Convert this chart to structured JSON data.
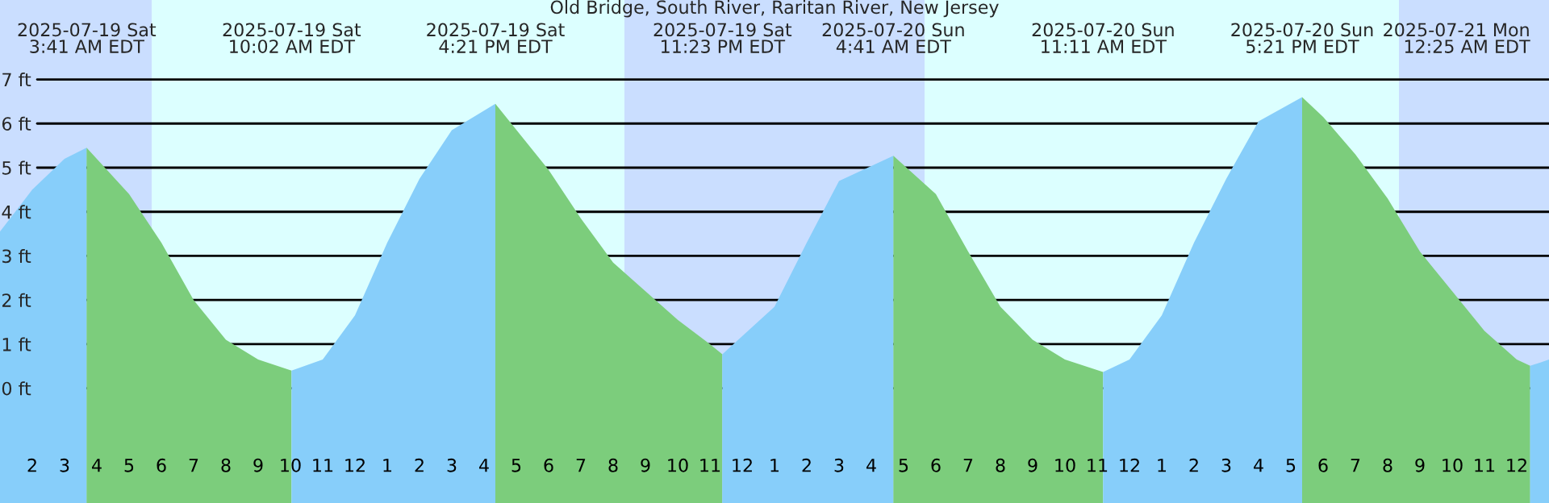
{
  "chart_data": {
    "type": "area",
    "title": "Old Bridge, South River, Raritan River, New Jersey",
    "series": [
      {
        "color": "#87cefa",
        "x": [
          "2025-07-19T01:00",
          "2025-07-19T02:00",
          "2025-07-19T03:00",
          "2025-07-19T03:41"
        ],
        "values": [
          3.55,
          4.5,
          5.2,
          5.45
        ]
      },
      {
        "color": "#7ccd7c",
        "x": [
          "2025-07-19T03:41",
          "2025-07-19T05:00",
          "2025-07-19T06:00",
          "2025-07-19T07:00",
          "2025-07-19T08:00",
          "2025-07-19T09:00",
          "2025-07-19T10:02"
        ],
        "values": [
          5.45,
          4.4,
          3.3,
          2.0,
          1.1,
          0.65,
          0.4
        ]
      },
      {
        "color": "#87cefa",
        "x": [
          "2025-07-19T10:02",
          "2025-07-19T11:00",
          "2025-07-19T12:00",
          "2025-07-19T13:00",
          "2025-07-19T14:00",
          "2025-07-19T15:00",
          "2025-07-19T16:21"
        ],
        "values": [
          0.4,
          0.65,
          1.65,
          3.3,
          4.75,
          5.85,
          6.45
        ]
      },
      {
        "color": "#7ccd7c",
        "x": [
          "2025-07-19T16:21",
          "2025-07-19T18:00",
          "2025-07-19T19:00",
          "2025-07-19T20:00",
          "2025-07-19T21:00",
          "2025-07-19T22:00",
          "2025-07-19T23:00",
          "2025-07-19T23:23"
        ],
        "values": [
          6.45,
          4.95,
          3.85,
          2.85,
          2.2,
          1.55,
          1.0,
          0.77
        ]
      },
      {
        "color": "#87cefa",
        "x": [
          "2025-07-19T23:23",
          "2025-07-20T01:00",
          "2025-07-20T02:00",
          "2025-07-20T03:00",
          "2025-07-20T04:41"
        ],
        "values": [
          0.77,
          1.85,
          3.3,
          4.7,
          5.27
        ]
      },
      {
        "color": "#7ccd7c",
        "x": [
          "2025-07-20T04:41",
          "2025-07-20T06:00",
          "2025-07-20T07:00",
          "2025-07-20T08:00",
          "2025-07-20T09:00",
          "2025-07-20T10:00",
          "2025-07-20T11:11"
        ],
        "values": [
          5.27,
          4.4,
          3.1,
          1.85,
          1.1,
          0.65,
          0.37
        ]
      },
      {
        "color": "#87cefa",
        "x": [
          "2025-07-20T11:11",
          "2025-07-20T12:00",
          "2025-07-20T13:00",
          "2025-07-20T14:00",
          "2025-07-20T15:00",
          "2025-07-20T16:00",
          "2025-07-20T17:21"
        ],
        "values": [
          0.37,
          0.65,
          1.65,
          3.3,
          4.75,
          6.05,
          6.6
        ]
      },
      {
        "color": "#7ccd7c",
        "x": [
          "2025-07-20T17:21",
          "2025-07-20T18:00",
          "2025-07-20T19:00",
          "2025-07-20T20:00",
          "2025-07-20T21:00",
          "2025-07-20T22:00",
          "2025-07-20T23:00",
          "2025-07-21T00:00",
          "2025-07-21T00:25"
        ],
        "values": [
          6.6,
          6.15,
          5.3,
          4.3,
          3.1,
          2.2,
          1.3,
          0.65,
          0.51
        ]
      },
      {
        "color": "#87cefa",
        "x": [
          "2025-07-21T00:25",
          "2025-07-21T00:45",
          "2025-07-21T01:00"
        ],
        "values": [
          0.51,
          0.59,
          0.65
        ]
      }
    ],
    "xlim": [
      "2025-07-19T01:00",
      "2025-07-21T01:00"
    ],
    "xticks": [
      {
        "value": "2025-07-19T02:00",
        "label": "2"
      },
      {
        "value": "2025-07-19T03:00",
        "label": "3"
      },
      {
        "value": "2025-07-19T04:00",
        "label": "4"
      },
      {
        "value": "2025-07-19T05:00",
        "label": "5"
      },
      {
        "value": "2025-07-19T06:00",
        "label": "6"
      },
      {
        "value": "2025-07-19T07:00",
        "label": "7"
      },
      {
        "value": "2025-07-19T08:00",
        "label": "8"
      },
      {
        "value": "2025-07-19T09:00",
        "label": "9"
      },
      {
        "value": "2025-07-19T10:00",
        "label": "10"
      },
      {
        "value": "2025-07-19T11:00",
        "label": "11"
      },
      {
        "value": "2025-07-19T12:00",
        "label": "12"
      },
      {
        "value": "2025-07-19T13:00",
        "label": "1"
      },
      {
        "value": "2025-07-19T14:00",
        "label": "2"
      },
      {
        "value": "2025-07-19T15:00",
        "label": "3"
      },
      {
        "value": "2025-07-19T16:00",
        "label": "4"
      },
      {
        "value": "2025-07-19T17:00",
        "label": "5"
      },
      {
        "value": "2025-07-19T18:00",
        "label": "6"
      },
      {
        "value": "2025-07-19T19:00",
        "label": "7"
      },
      {
        "value": "2025-07-19T20:00",
        "label": "8"
      },
      {
        "value": "2025-07-19T21:00",
        "label": "9"
      },
      {
        "value": "2025-07-19T22:00",
        "label": "10"
      },
      {
        "value": "2025-07-19T23:00",
        "label": "11"
      },
      {
        "value": "2025-07-20T00:00",
        "label": "12"
      },
      {
        "value": "2025-07-20T01:00",
        "label": "1"
      },
      {
        "value": "2025-07-20T02:00",
        "label": "2"
      },
      {
        "value": "2025-07-20T03:00",
        "label": "3"
      },
      {
        "value": "2025-07-20T04:00",
        "label": "4"
      },
      {
        "value": "2025-07-20T05:00",
        "label": "5"
      },
      {
        "value": "2025-07-20T06:00",
        "label": "6"
      },
      {
        "value": "2025-07-20T07:00",
        "label": "7"
      },
      {
        "value": "2025-07-20T08:00",
        "label": "8"
      },
      {
        "value": "2025-07-20T09:00",
        "label": "9"
      },
      {
        "value": "2025-07-20T10:00",
        "label": "10"
      },
      {
        "value": "2025-07-20T11:00",
        "label": "11"
      },
      {
        "value": "2025-07-20T12:00",
        "label": "12"
      },
      {
        "value": "2025-07-20T13:00",
        "label": "1"
      },
      {
        "value": "2025-07-20T14:00",
        "label": "2"
      },
      {
        "value": "2025-07-20T15:00",
        "label": "3"
      },
      {
        "value": "2025-07-20T16:00",
        "label": "4"
      },
      {
        "value": "2025-07-20T17:00",
        "label": "5"
      },
      {
        "value": "2025-07-20T18:00",
        "label": "6"
      },
      {
        "value": "2025-07-20T19:00",
        "label": "7"
      },
      {
        "value": "2025-07-20T20:00",
        "label": "8"
      },
      {
        "value": "2025-07-20T21:00",
        "label": "9"
      },
      {
        "value": "2025-07-20T22:00",
        "label": "10"
      },
      {
        "value": "2025-07-20T23:00",
        "label": "11"
      },
      {
        "value": "2025-07-21T00:00",
        "label": "12"
      }
    ],
    "ylim": [
      -2.6,
      8.8
    ],
    "yticks": [
      {
        "value": 0,
        "label": "0 ft"
      },
      {
        "value": 1,
        "label": "1 ft"
      },
      {
        "value": 2,
        "label": "2 ft"
      },
      {
        "value": 3,
        "label": "3 ft"
      },
      {
        "value": 4,
        "label": "4 ft"
      },
      {
        "value": 5,
        "label": "5 ft"
      },
      {
        "value": 6,
        "label": "6 ft"
      },
      {
        "value": 7,
        "label": "7 ft"
      }
    ],
    "grid": "y",
    "bands": [
      {
        "axis": "x",
        "from": "2025-07-19T01:00",
        "to": "2025-07-19T05:42",
        "color": "#cadeff"
      },
      {
        "axis": "x",
        "from": "2025-07-19T20:21",
        "to": "2025-07-20T05:39",
        "color": "#cadeff"
      },
      {
        "axis": "x",
        "from": "2025-07-20T20:21",
        "to": "2025-07-21T01:00",
        "color": "#cadeff"
      }
    ],
    "annotations": [
      "2025-07-19 Sat\n3:41 AM EDT",
      "2025-07-19 Sat\n10:02 AM EDT",
      "2025-07-19 Sat\n4:21 PM EDT",
      "2025-07-19 Sat\n11:23 PM EDT",
      "2025-07-20 Sun\n4:41 AM EDT",
      "2025-07-20 Sun\n11:11 AM EDT",
      "2025-07-20 Sun\n5:21 PM EDT",
      "2025-07-21 Mon\n12:25 AM EDT"
    ]
  }
}
